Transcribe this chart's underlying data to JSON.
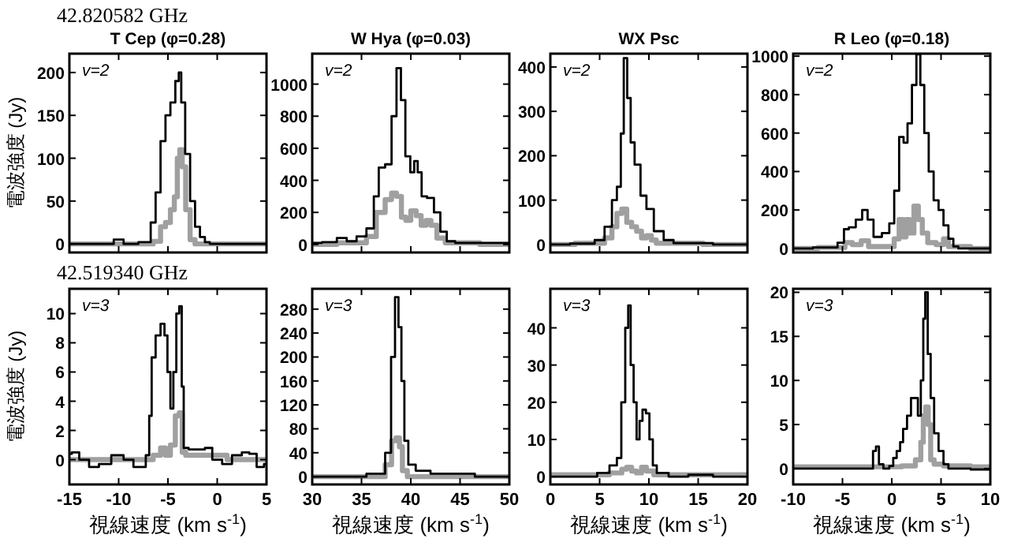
{
  "chart_data": [
    {
      "type": "step",
      "title": "T Cep (φ=0.28)",
      "subtitle": "42.820582 GHz",
      "ylabel": "電波強度 (Jy)",
      "annotations": [
        "v=2"
      ],
      "xlim": [
        -15,
        5
      ],
      "xticks": [
        -15,
        -10,
        -5,
        0,
        5
      ],
      "ylim": [
        -10,
        222
      ],
      "yticks": [
        0,
        50,
        100,
        150,
        200
      ],
      "tick_labels": "y",
      "series": [
        {
          "color": "#a0a0a0",
          "x": [
            -15,
            -7,
            -6,
            -5.5,
            -5,
            -4.5,
            -4.2,
            -3.9,
            -3.7,
            -3.4,
            -3,
            -2.5,
            -2,
            5
          ],
          "values": [
            0,
            0,
            3,
            20,
            25,
            40,
            55,
            100,
            110,
            90,
            40,
            5,
            0,
            0
          ]
        },
        {
          "color": "#000000",
          "x": [
            -15,
            -11,
            -10,
            -9,
            -7,
            -6.5,
            -6,
            -5.5,
            -5,
            -4.5,
            -4,
            -3.8,
            -3.5,
            -3,
            -2.5,
            -2,
            -1.5,
            -1,
            -0.5,
            5
          ],
          "values": [
            0,
            0,
            5,
            0,
            2,
            25,
            60,
            120,
            150,
            165,
            190,
            200,
            165,
            105,
            50,
            20,
            8,
            2,
            0,
            0
          ]
        }
      ]
    },
    {
      "type": "step",
      "title": "W Hya (φ=0.03)",
      "annotations": [
        "v=2"
      ],
      "xlim": [
        30,
        50
      ],
      "xticks": [
        30,
        35,
        40,
        45,
        50
      ],
      "ylim": [
        -50,
        1190
      ],
      "yticks": [
        0,
        200,
        400,
        600,
        800,
        1000
      ],
      "tick_labels": "y",
      "series": [
        {
          "color": "#a0a0a0",
          "x": [
            30,
            35,
            36,
            37,
            37.8,
            38.3,
            38.8,
            39.3,
            39.7,
            40.3,
            40.8,
            41.3,
            41.8,
            42.3,
            43,
            44,
            50
          ],
          "values": [
            0,
            10,
            50,
            200,
            280,
            320,
            300,
            170,
            150,
            210,
            180,
            120,
            150,
            120,
            40,
            10,
            0
          ]
        },
        {
          "color": "#000000",
          "x": [
            30,
            32,
            33,
            34,
            35,
            36,
            36.5,
            37,
            37.8,
            38.3,
            38.8,
            39.2,
            39.7,
            40.2,
            40.5,
            40.9,
            41.3,
            42,
            42.7,
            43.3,
            44,
            45,
            50
          ],
          "values": [
            10,
            15,
            40,
            20,
            50,
            100,
            300,
            480,
            500,
            800,
            1100,
            900,
            550,
            450,
            520,
            450,
            300,
            290,
            200,
            80,
            20,
            10,
            10
          ]
        }
      ]
    },
    {
      "type": "step",
      "title": "WX Psc",
      "annotations": [
        "v=2"
      ],
      "xlim": [
        0,
        20
      ],
      "xticks": [
        0,
        5,
        10,
        15,
        20
      ],
      "ylim": [
        -18,
        430
      ],
      "yticks": [
        0,
        100,
        200,
        300,
        400
      ],
      "tick_labels": "y",
      "series": [
        {
          "color": "#a0a0a0",
          "x": [
            0,
            5,
            6,
            6.5,
            7,
            7.5,
            8,
            8.5,
            9,
            9.5,
            10,
            10.5,
            11,
            20
          ],
          "values": [
            0,
            3,
            15,
            40,
            70,
            80,
            50,
            40,
            30,
            15,
            20,
            10,
            3,
            0
          ]
        },
        {
          "color": "#000000",
          "x": [
            0,
            4,
            5,
            6,
            6.5,
            7,
            7.3,
            7.6,
            8,
            8.3,
            8.8,
            9.5,
            10,
            11,
            12,
            13,
            20
          ],
          "values": [
            0,
            2,
            10,
            40,
            100,
            130,
            250,
            420,
            330,
            230,
            180,
            110,
            80,
            30,
            10,
            3,
            0
          ]
        }
      ]
    },
    {
      "type": "step",
      "title": "R Leo (φ=0.18)",
      "annotations": [
        "v=2"
      ],
      "xlim": [
        -10,
        10
      ],
      "xticks": [
        -10,
        -5,
        0,
        5,
        10
      ],
      "ylim": [
        -21,
        1013
      ],
      "yticks": [
        0,
        200,
        400,
        600,
        800,
        1000
      ],
      "tick_labels": "y",
      "series": [
        {
          "color": "#a0a0a0",
          "x": [
            -10,
            -5,
            -4.5,
            -3.5,
            -2.7,
            -2,
            0,
            0.5,
            1,
            1.3,
            1.6,
            2,
            2.5,
            2.9,
            3.3,
            4,
            5,
            5.5,
            6,
            10
          ],
          "values": [
            0,
            5,
            30,
            20,
            40,
            10,
            10,
            50,
            150,
            60,
            150,
            80,
            220,
            150,
            80,
            30,
            20,
            50,
            10,
            0
          ]
        },
        {
          "color": "#000000",
          "x": [
            -10,
            -6,
            -5,
            -4.7,
            -4,
            -3.3,
            -2.7,
            -2.2,
            -1.5,
            -0.5,
            0,
            0.5,
            1,
            1.4,
            1.8,
            2.3,
            2.7,
            3.1,
            3.5,
            4,
            4.5,
            5,
            5.5,
            6,
            6.5,
            7,
            10
          ],
          "values": [
            0,
            5,
            30,
            100,
            110,
            150,
            200,
            150,
            60,
            80,
            130,
            300,
            580,
            550,
            650,
            850,
            1010,
            850,
            600,
            400,
            250,
            200,
            120,
            50,
            10,
            0,
            0
          ]
        }
      ]
    },
    {
      "type": "step",
      "subtitle": "42.519340 GHz",
      "ylabel": "電波強度 (Jy)",
      "xlabel": "視線速度 (km s$^{-1}$)",
      "annotations": [
        "v=3"
      ],
      "xlim": [
        -15,
        5
      ],
      "xticks": [
        -15,
        -10,
        -5,
        0,
        5
      ],
      "ylim": [
        -1.7,
        11.7
      ],
      "yticks": [
        0,
        2,
        4,
        6,
        8,
        10
      ],
      "series": [
        {
          "color": "#a0a0a0",
          "x": [
            -15,
            -7,
            -6,
            -5.5,
            -5,
            -4.5,
            -4,
            -3.7,
            -3.4,
            -3,
            5
          ],
          "values": [
            0,
            0,
            0.3,
            0.8,
            0.3,
            1,
            3,
            3.2,
            0.5,
            0.3,
            0
          ]
        },
        {
          "color": "#000000",
          "x": [
            -15,
            -14.5,
            -13.5,
            -12.5,
            -11.5,
            -10,
            -9,
            -8,
            -7.5,
            -7,
            -6.8,
            -6.5,
            -6,
            -5.5,
            -5.2,
            -4.9,
            -4.6,
            -4.3,
            -4,
            -3.7,
            -3.5,
            -3.3,
            -2.5,
            -1.5,
            -1,
            0,
            1,
            2,
            3,
            3.5,
            4.5,
            5
          ],
          "values": [
            0.4,
            0.5,
            0,
            -0.5,
            -0.3,
            0.3,
            0,
            -0.5,
            -0.5,
            0.3,
            3,
            7,
            8.5,
            9.3,
            8.5,
            6,
            3.5,
            6,
            10,
            10.5,
            5,
            0.8,
            0.7,
            0.7,
            0.8,
            0,
            -0.3,
            0.3,
            0.5,
            0.4,
            -0.5,
            -0.3
          ]
        }
      ]
    },
    {
      "type": "step",
      "xlabel": "視線速度 (km s$^{-1}$)",
      "annotations": [
        "v=3"
      ],
      "xlim": [
        30,
        50
      ],
      "xticks": [
        30,
        35,
        40,
        45,
        50
      ],
      "ylim": [
        -13,
        314
      ],
      "yticks": [
        0,
        40,
        80,
        120,
        160,
        200,
        240,
        280
      ],
      "series": [
        {
          "color": "#a0a0a0",
          "x": [
            30,
            37,
            37.8,
            38.3,
            38.7,
            39,
            39.3,
            40,
            50
          ],
          "values": [
            0,
            0,
            20,
            60,
            65,
            50,
            10,
            0,
            0
          ]
        },
        {
          "color": "#000000",
          "x": [
            30,
            35,
            36,
            37,
            37.8,
            38.2,
            38.6,
            38.9,
            39.2,
            39.5,
            40,
            41,
            43,
            50
          ],
          "values": [
            0,
            0,
            5,
            5,
            40,
            200,
            300,
            250,
            160,
            60,
            20,
            10,
            5,
            0
          ]
        }
      ]
    },
    {
      "type": "step",
      "xlabel": "視線速度 (km s$^{-1}$)",
      "annotations": [
        "v=3"
      ],
      "xlim": [
        0,
        20
      ],
      "xticks": [
        0,
        5,
        10,
        15,
        20
      ],
      "ylim": [
        -2.1,
        50.5
      ],
      "yticks": [
        0,
        10,
        20,
        30,
        40
      ],
      "series": [
        {
          "color": "#a0a0a0",
          "x": [
            0,
            5,
            7,
            7.5,
            8,
            8.5,
            9,
            9.5,
            10,
            11,
            20
          ],
          "values": [
            0.5,
            0.5,
            1,
            2,
            2.5,
            1.5,
            1,
            2.5,
            1.5,
            0.5,
            0.5
          ]
        },
        {
          "color": "#000000",
          "x": [
            0,
            2,
            4,
            5.5,
            6.5,
            7,
            7.4,
            7.8,
            8,
            8.3,
            8.6,
            8.9,
            9.2,
            9.5,
            9.9,
            10.2,
            10.6,
            11,
            13,
            15,
            18,
            20
          ],
          "values": [
            0,
            0,
            0,
            1,
            3,
            5,
            20,
            40,
            46,
            30,
            20,
            10,
            15,
            18,
            17,
            10,
            3,
            1,
            0,
            0.5,
            0,
            0
          ]
        }
      ]
    },
    {
      "type": "step",
      "xlabel": "視線速度 (km s$^{-1}$)",
      "annotations": [
        "v=3"
      ],
      "xlim": [
        -10,
        10
      ],
      "xticks": [
        -10,
        -5,
        0,
        5,
        10
      ],
      "ylim": [
        -1.8,
        20.4
      ],
      "yticks": [
        0,
        5,
        10,
        15,
        20
      ],
      "series": [
        {
          "color": "#a0a0a0",
          "x": [
            -10,
            0,
            2,
            2.8,
            3.1,
            3.3,
            3.6,
            3.8,
            4.1,
            4.5,
            6,
            10
          ],
          "values": [
            0.2,
            0.2,
            0.3,
            1,
            3,
            6,
            7,
            5,
            1,
            0.5,
            0.3,
            0.2
          ]
        },
        {
          "color": "#000000",
          "x": [
            -10,
            -5,
            -2,
            -1.8,
            -1.4,
            -1.2,
            -0.5,
            0,
            0.3,
            0.7,
            1,
            1.3,
            1.8,
            2.1,
            2.5,
            2.8,
            3.1,
            3.3,
            3.5,
            3.8,
            4.1,
            4.5,
            5,
            5.5,
            6,
            10
          ],
          "values": [
            0,
            0,
            0,
            2,
            2.5,
            0.5,
            0,
            0.3,
            1.2,
            2,
            3,
            4.5,
            6,
            8,
            8,
            6,
            10,
            17,
            20,
            13,
            8,
            4,
            2,
            0.5,
            0,
            -0.1
          ]
        }
      ]
    }
  ]
}
